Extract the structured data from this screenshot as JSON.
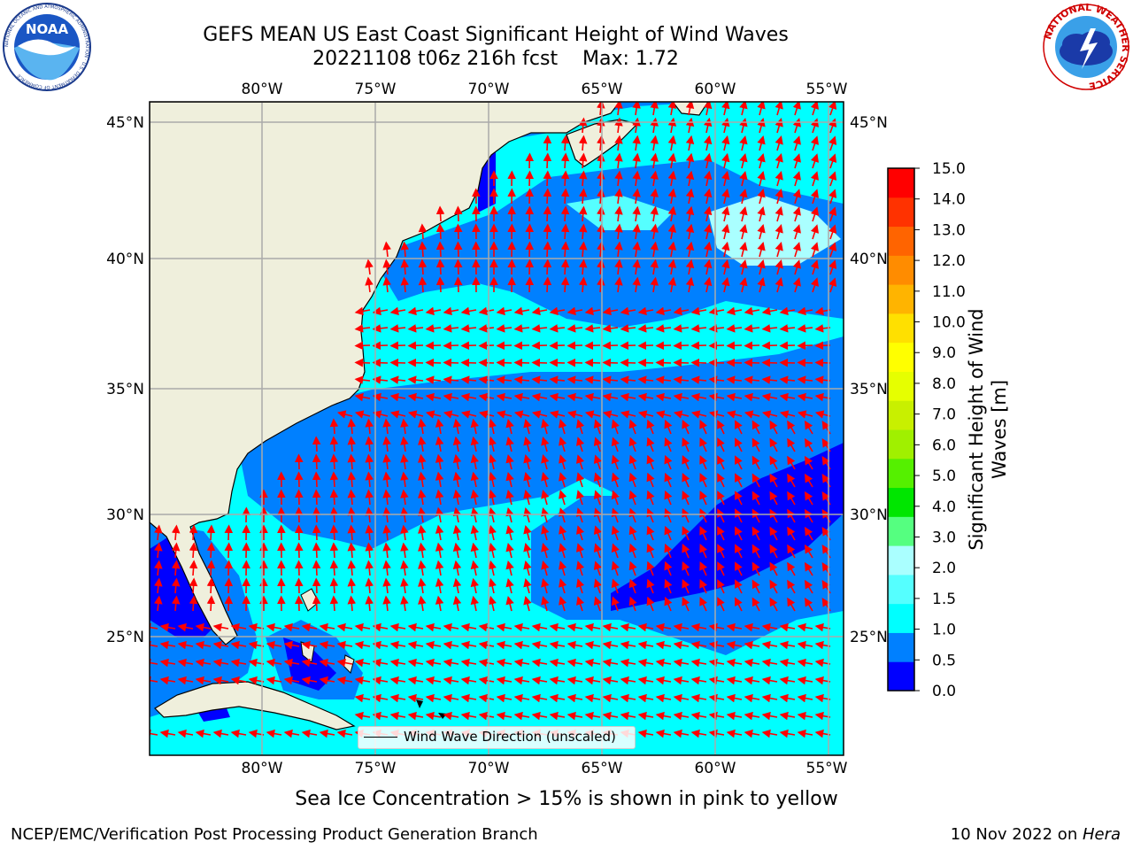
{
  "header": {
    "title_line1": "GEFS MEAN US East Coast Significant Height of Wind Waves",
    "title_line2": "20221108 t06z 216h fcst    Max: 1.72"
  },
  "logos": {
    "noaa_text": "NOAA",
    "noaa_ring_text": "NATIONAL OCEANIC AND ATMOSPHERIC ADMINISTRATION · U.S. DEPARTMENT OF COMMERCE",
    "nws_ring_text": "NATIONAL WEATHER SERVICE"
  },
  "map": {
    "lon_labels": [
      "80°W",
      "75°W",
      "70°W",
      "65°W",
      "60°W",
      "55°W"
    ],
    "lat_labels": [
      "45°N",
      "40°N",
      "35°N",
      "30°N",
      "25°N"
    ],
    "lon_range": [
      -85,
      -54.5
    ],
    "lat_range": [
      20,
      46
    ],
    "grid": true,
    "land_color": "#efefdc",
    "arrow_color": "#ff0000",
    "icons": [
      "wind-arrow-icon"
    ]
  },
  "legend": {
    "label": "Wind Wave Direction (unscaled)",
    "placement": "lower-center"
  },
  "colorbar": {
    "label_line1": "Significant Height of Wind",
    "label_line2": "Waves [m]",
    "ticks": [
      "15.0",
      "14.0",
      "13.0",
      "12.0",
      "11.0",
      "10.0",
      "9.0",
      "8.0",
      "7.0",
      "6.0",
      "5.0",
      "4.0",
      "3.0",
      "2.0",
      "1.5",
      "1.0",
      "0.5",
      "0.0"
    ],
    "colors": [
      "#0000ff",
      "#0080ff",
      "#00ffff",
      "#55ffff",
      "#aaffff",
      "#55ff80",
      "#00e600",
      "#55f000",
      "#a0f000",
      "#c8f000",
      "#e6ff00",
      "#ffff00",
      "#ffe000",
      "#ffb400",
      "#ff8c00",
      "#ff6400",
      "#ff3200",
      "#ff0000"
    ]
  },
  "footnote": "Sea Ice Concentration > 15% is shown in pink to yellow",
  "footer": {
    "left": "NCEP/EMC/Verification Post Processing Product Generation Branch",
    "right_date": "10 Nov 2022 on ",
    "right_machine": "Hera"
  }
}
